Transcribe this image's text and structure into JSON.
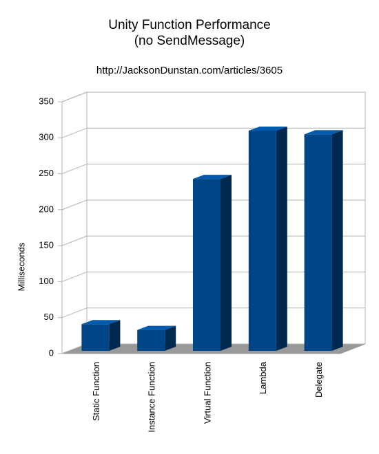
{
  "chart_data": {
    "type": "bar",
    "title": "Unity Function Performance",
    "title_line2": "(no SendMessage)",
    "subtitle": "http://JacksonDunstan.com/articles/3605",
    "y_label": "Milliseconds",
    "categories": [
      "Static Function",
      "Instance Function",
      "Virtual Function",
      "Lambda",
      "Delegate"
    ],
    "values": [
      37,
      29,
      239,
      306,
      301
    ],
    "color": "#004586",
    "ylim": [
      0,
      350
    ],
    "yticks": [
      0,
      50,
      100,
      150,
      200,
      250,
      300,
      350
    ],
    "grid": true
  }
}
